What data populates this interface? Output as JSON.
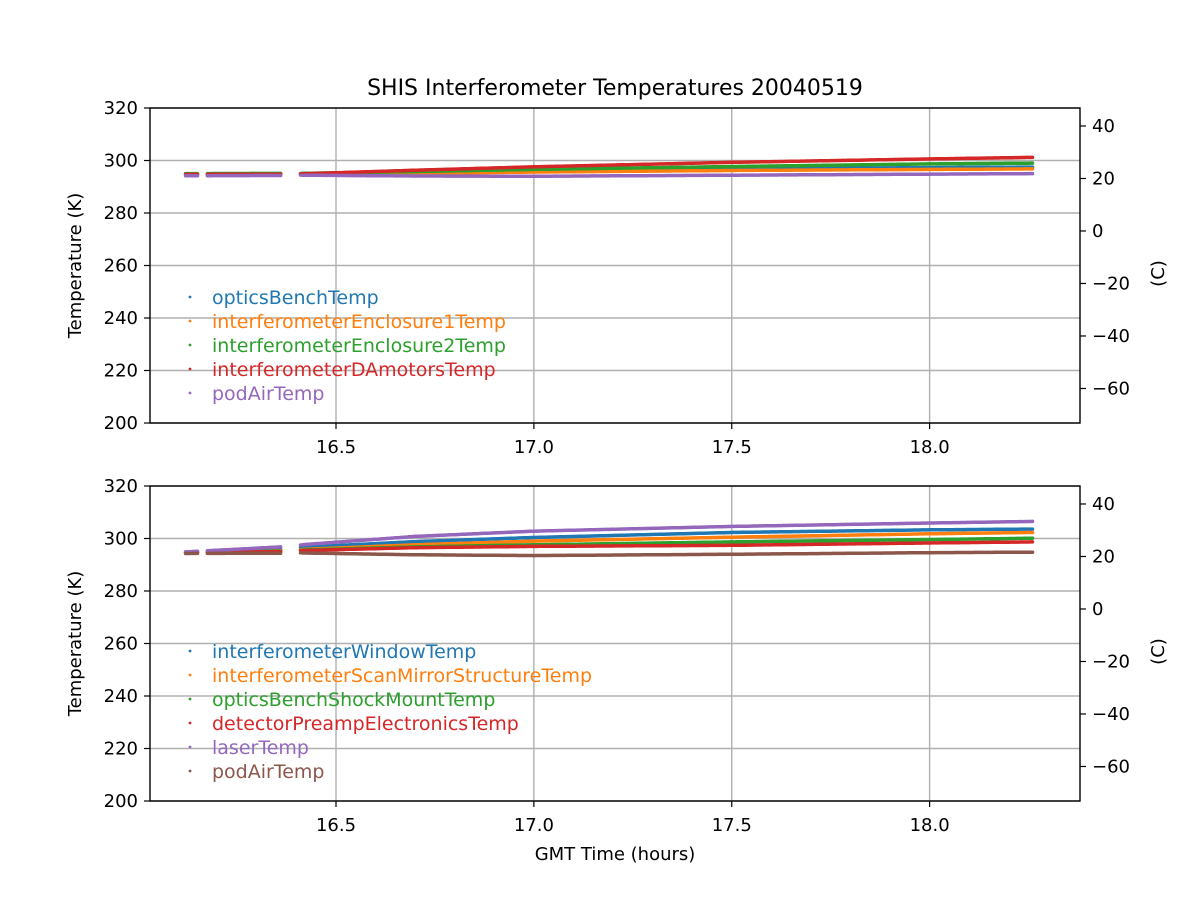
{
  "title": "SHIS Interferometer Temperatures 20040519",
  "chart_data": [
    {
      "type": "scatter",
      "xlim": [
        16.03,
        18.38
      ],
      "ylim": [
        200,
        320
      ],
      "ylim_right": [
        -73.15,
        46.85
      ],
      "ylabel": "Temperature (K)",
      "ylabel_right": "(C)",
      "xlabel": "",
      "xticks": [
        16.5,
        17.0,
        17.5,
        18.0
      ],
      "xtick_labels": [
        "16.5",
        "17.0",
        "17.5",
        "18.0"
      ],
      "yticks": [
        200,
        220,
        240,
        260,
        280,
        300,
        320
      ],
      "ytick_labels": [
        "200",
        "220",
        "240",
        "260",
        "280",
        "300",
        "320"
      ],
      "yticks_right": [
        -60,
        -40,
        -20,
        0,
        20,
        40
      ],
      "ytick_labels_right": [
        "−60",
        "−40",
        "−20",
        "0",
        "20",
        "40"
      ],
      "grid": true,
      "legend_position": "lower-left",
      "gaps": [
        [
          16.15,
          16.17
        ],
        [
          16.36,
          16.41
        ]
      ],
      "series": [
        {
          "name": "opticsBenchTemp",
          "color": "#1f77b4",
          "x": [
            16.12,
            16.36,
            16.41,
            16.7,
            17.0,
            17.5,
            18.0,
            18.26
          ],
          "y": [
            294.8,
            294.9,
            294.9,
            295.3,
            295.9,
            296.7,
            297.3,
            297.5
          ]
        },
        {
          "name": "interferometerEnclosure1Temp",
          "color": "#ff7f0e",
          "x": [
            16.12,
            16.36,
            16.41,
            16.7,
            17.0,
            17.5,
            18.0,
            18.26
          ],
          "y": [
            294.7,
            294.8,
            294.8,
            295.1,
            295.6,
            296.2,
            296.6,
            296.8
          ]
        },
        {
          "name": "interferometerEnclosure2Temp",
          "color": "#2ca02c",
          "x": [
            16.12,
            16.36,
            16.41,
            16.7,
            17.0,
            17.5,
            18.0,
            18.26
          ],
          "y": [
            295.0,
            295.1,
            295.1,
            295.8,
            296.6,
            297.7,
            298.7,
            299.0
          ]
        },
        {
          "name": "interferometerDAmotorsTemp",
          "color": "#d62728",
          "x": [
            16.12,
            16.36,
            16.41,
            16.7,
            17.0,
            17.5,
            18.0,
            18.26
          ],
          "y": [
            294.7,
            294.8,
            294.9,
            296.3,
            297.6,
            299.3,
            300.6,
            301.2
          ]
        },
        {
          "name": "podAirTemp",
          "color": "#9467bd",
          "x": [
            16.12,
            16.36,
            16.41,
            16.7,
            17.0,
            17.5,
            18.0,
            18.26
          ],
          "y": [
            294.2,
            294.3,
            294.4,
            294.1,
            294.0,
            294.4,
            294.8,
            295.0
          ]
        }
      ]
    },
    {
      "type": "scatter",
      "xlim": [
        16.03,
        18.38
      ],
      "ylim": [
        200,
        320
      ],
      "ylim_right": [
        -73.15,
        46.85
      ],
      "ylabel": "Temperature (K)",
      "ylabel_right": "(C)",
      "xlabel": "GMT Time (hours)",
      "xticks": [
        16.5,
        17.0,
        17.5,
        18.0
      ],
      "xtick_labels": [
        "16.5",
        "17.0",
        "17.5",
        "18.0"
      ],
      "yticks": [
        200,
        220,
        240,
        260,
        280,
        300,
        320
      ],
      "ytick_labels": [
        "200",
        "220",
        "240",
        "260",
        "280",
        "300",
        "320"
      ],
      "yticks_right": [
        -60,
        -40,
        -20,
        0,
        20,
        40
      ],
      "ytick_labels_right": [
        "−60",
        "−40",
        "−20",
        "0",
        "20",
        "40"
      ],
      "grid": true,
      "legend_position": "lower-left",
      "gaps": [
        [
          16.15,
          16.17
        ],
        [
          16.36,
          16.41
        ]
      ],
      "series": [
        {
          "name": "interferometerWindowTemp",
          "color": "#1f77b4",
          "x": [
            16.12,
            16.36,
            16.41,
            16.7,
            17.0,
            17.5,
            18.0,
            18.26
          ],
          "y": [
            294.8,
            295.8,
            296.6,
            298.8,
            300.4,
            302.3,
            303.3,
            303.6
          ]
        },
        {
          "name": "interferometerScanMirrorStructureTemp",
          "color": "#ff7f0e",
          "x": [
            16.12,
            16.36,
            16.41,
            16.7,
            17.0,
            17.5,
            18.0,
            18.26
          ],
          "y": [
            294.7,
            295.3,
            295.8,
            297.6,
            299.0,
            300.5,
            301.8,
            302.3
          ]
        },
        {
          "name": "opticsBenchShockMountTemp",
          "color": "#2ca02c",
          "x": [
            16.12,
            16.36,
            16.41,
            16.7,
            17.0,
            17.5,
            18.0,
            18.26
          ],
          "y": [
            294.7,
            295.2,
            295.6,
            296.8,
            297.6,
            298.7,
            299.6,
            300.1
          ]
        },
        {
          "name": "detectorPreampElectronicsTemp",
          "color": "#d62728",
          "x": [
            16.12,
            16.36,
            16.41,
            16.7,
            17.0,
            17.5,
            18.0,
            18.26
          ],
          "y": [
            294.6,
            295.0,
            295.4,
            296.5,
            297.0,
            297.4,
            298.3,
            298.7
          ]
        },
        {
          "name": "laserTemp",
          "color": "#9467bd",
          "x": [
            16.12,
            16.36,
            16.41,
            16.7,
            17.0,
            17.5,
            18.0,
            18.26
          ],
          "y": [
            294.9,
            296.8,
            297.6,
            300.8,
            302.8,
            304.6,
            305.9,
            306.5
          ]
        },
        {
          "name": "podAirTemp",
          "color": "#8c564b",
          "x": [
            16.12,
            16.36,
            16.41,
            16.7,
            17.0,
            17.5,
            18.0,
            18.26
          ],
          "y": [
            294.3,
            294.4,
            294.5,
            293.8,
            293.5,
            294.0,
            294.6,
            294.8
          ]
        }
      ]
    }
  ]
}
